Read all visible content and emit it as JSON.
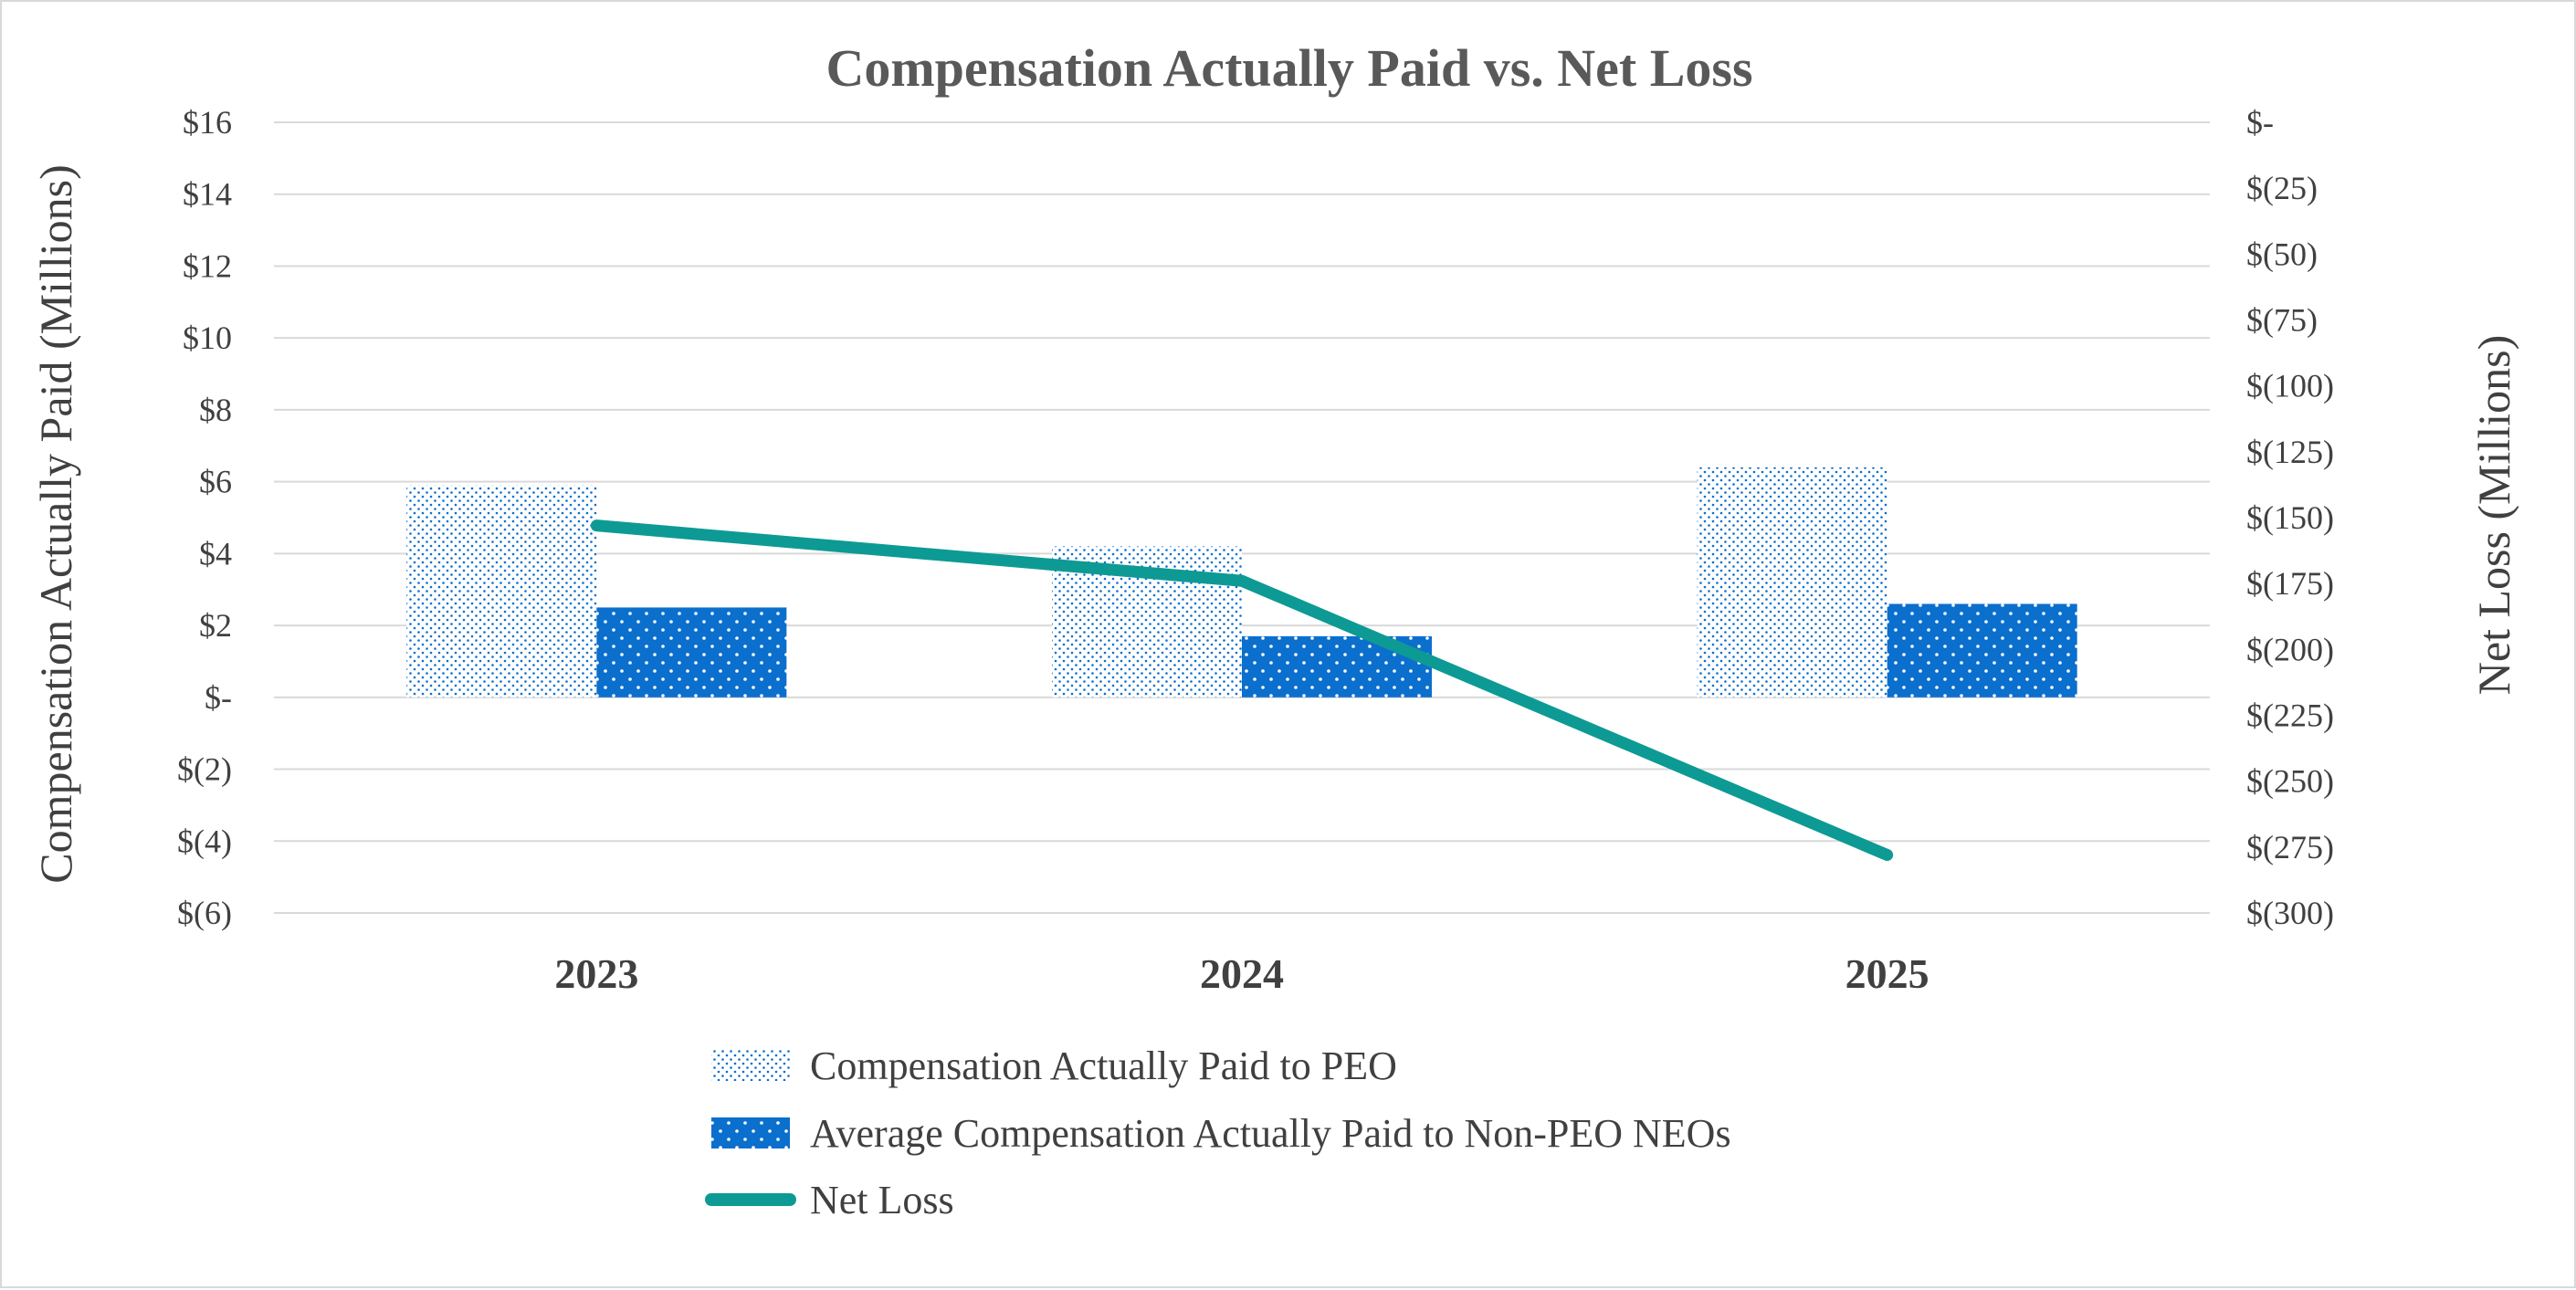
{
  "chart_data": {
    "type": "bar",
    "title": "Compensation Actually Paid vs. Net Loss",
    "categories": [
      "2023",
      "2024",
      "2025"
    ],
    "ylabel": "Compensation Actually Paid (Millions)",
    "y2label": "Net Loss (Millions)",
    "ylim": [
      -6,
      16
    ],
    "y2lim": [
      -300,
      0
    ],
    "yticks": [
      16,
      14,
      12,
      10,
      8,
      6,
      4,
      2,
      0,
      -2,
      -4,
      -6
    ],
    "ytick_labels": [
      "$16",
      "$14",
      "$12",
      "$10",
      "$8",
      "$6",
      "$4",
      "$2",
      "$-",
      "$(2)",
      "$(4)",
      "$(6)"
    ],
    "y2ticks": [
      0,
      -25,
      -50,
      -75,
      -100,
      -125,
      -150,
      -175,
      -200,
      -225,
      -250,
      -275,
      -300
    ],
    "y2tick_labels": [
      "$-",
      "$(25)",
      "$(50)",
      "$(75)",
      "$(100)",
      "$(125)",
      "$(150)",
      "$(175)",
      "$(200)",
      "$(225)",
      "$(250)",
      "$(275)",
      "$(300)"
    ],
    "grid": true,
    "legend_position": "bottom",
    "series": [
      {
        "name": "Compensation Actually Paid to PEO",
        "kind": "bar",
        "axis": "left",
        "pattern": "light-dotted",
        "color": "#0b6fcd",
        "values": [
          5.9,
          4.2,
          6.4
        ]
      },
      {
        "name": "Average Compensation Actually Paid to Non-PEO NEOs",
        "kind": "bar",
        "axis": "left",
        "pattern": "dark-dotted",
        "color": "#0b6fcd",
        "values": [
          2.5,
          1.7,
          2.6
        ]
      },
      {
        "name": "Net Loss",
        "kind": "line",
        "axis": "right",
        "color": "#0d9a94",
        "values": [
          -153,
          -174,
          -278
        ]
      }
    ]
  }
}
